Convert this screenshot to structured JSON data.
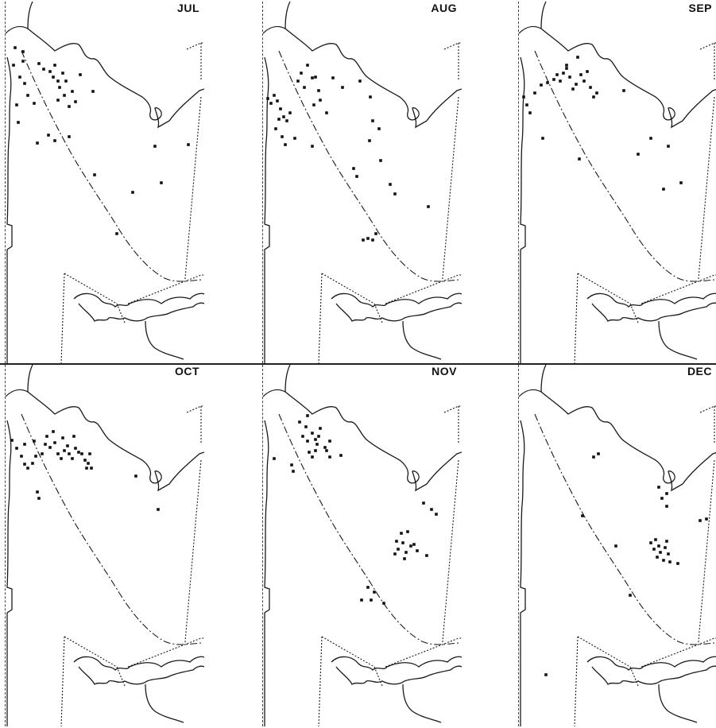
{
  "figure": {
    "panels": [
      {
        "id": "jul",
        "label": "JUL",
        "dots": [
          [
            12,
            58
          ],
          [
            22,
            63
          ],
          [
            10,
            80
          ],
          [
            18,
            95
          ],
          [
            24,
            103
          ],
          [
            14,
            130
          ],
          [
            16,
            152
          ],
          [
            28,
            118
          ],
          [
            36,
            128
          ],
          [
            22,
            75
          ],
          [
            42,
            78
          ],
          [
            48,
            85
          ],
          [
            56,
            88
          ],
          [
            62,
            80
          ],
          [
            60,
            95
          ],
          [
            66,
            100
          ],
          [
            72,
            90
          ],
          [
            76,
            100
          ],
          [
            68,
            108
          ],
          [
            74,
            118
          ],
          [
            84,
            113
          ],
          [
            88,
            126
          ],
          [
            80,
            132
          ],
          [
            94,
            92
          ],
          [
            110,
            113
          ],
          [
            66,
            124
          ],
          [
            54,
            168
          ],
          [
            62,
            175
          ],
          [
            40,
            178
          ],
          [
            80,
            170
          ],
          [
            112,
            218
          ],
          [
            160,
            240
          ],
          [
            188,
            182
          ],
          [
            230,
            180
          ],
          [
            196,
            228
          ],
          [
            140,
            292
          ]
        ]
      },
      {
        "id": "aug",
        "label": "AUG",
        "dots": [
          [
            6,
            122
          ],
          [
            10,
            128
          ],
          [
            14,
            118
          ],
          [
            18,
            125
          ],
          [
            22,
            135
          ],
          [
            26,
            145
          ],
          [
            30,
            150
          ],
          [
            34,
            140
          ],
          [
            16,
            160
          ],
          [
            24,
            170
          ],
          [
            28,
            180
          ],
          [
            40,
            172
          ],
          [
            20,
            148
          ],
          [
            44,
            100
          ],
          [
            52,
            108
          ],
          [
            48,
            90
          ],
          [
            56,
            80
          ],
          [
            62,
            96
          ],
          [
            70,
            112
          ],
          [
            72,
            124
          ],
          [
            64,
            130
          ],
          [
            80,
            140
          ],
          [
            66,
            95
          ],
          [
            88,
            96
          ],
          [
            100,
            108
          ],
          [
            122,
            100
          ],
          [
            135,
            120
          ],
          [
            138,
            150
          ],
          [
            146,
            160
          ],
          [
            134,
            175
          ],
          [
            114,
            210
          ],
          [
            118,
            220
          ],
          [
            148,
            200
          ],
          [
            160,
            230
          ],
          [
            166,
            242
          ],
          [
            208,
            258
          ],
          [
            126,
            300
          ],
          [
            132,
            298
          ],
          [
            138,
            300
          ],
          [
            142,
            292
          ],
          [
            62,
            182
          ]
        ]
      },
      {
        "id": "sep",
        "label": "SEP",
        "dots": [
          [
            6,
            120
          ],
          [
            10,
            130
          ],
          [
            14,
            140
          ],
          [
            20,
            115
          ],
          [
            28,
            105
          ],
          [
            36,
            102
          ],
          [
            44,
            98
          ],
          [
            48,
            92
          ],
          [
            52,
            100
          ],
          [
            56,
            90
          ],
          [
            60,
            84
          ],
          [
            64,
            95
          ],
          [
            68,
            110
          ],
          [
            72,
            104
          ],
          [
            78,
            92
          ],
          [
            82,
            100
          ],
          [
            86,
            88
          ],
          [
            90,
            108
          ],
          [
            98,
            115
          ],
          [
            94,
            120
          ],
          [
            74,
            70
          ],
          [
            60,
            80
          ],
          [
            132,
            112
          ],
          [
            150,
            192
          ],
          [
            166,
            172
          ],
          [
            188,
            182
          ],
          [
            204,
            228
          ],
          [
            182,
            236
          ],
          [
            76,
            198
          ],
          [
            30,
            172
          ]
        ]
      },
      {
        "id": "oct",
        "label": "OCT",
        "dots": [
          [
            8,
            95
          ],
          [
            14,
            105
          ],
          [
            20,
            115
          ],
          [
            24,
            125
          ],
          [
            28,
            130
          ],
          [
            34,
            124
          ],
          [
            38,
            115
          ],
          [
            36,
            96
          ],
          [
            46,
            112
          ],
          [
            50,
            100
          ],
          [
            56,
            104
          ],
          [
            62,
            98
          ],
          [
            66,
            112
          ],
          [
            70,
            118
          ],
          [
            74,
            108
          ],
          [
            78,
            102
          ],
          [
            80,
            112
          ],
          [
            84,
            118
          ],
          [
            88,
            105
          ],
          [
            92,
            110
          ],
          [
            96,
            112
          ],
          [
            100,
            120
          ],
          [
            104,
            124
          ],
          [
            108,
            130
          ],
          [
            102,
            130
          ],
          [
            106,
            112
          ],
          [
            86,
            90
          ],
          [
            72,
            92
          ],
          [
            60,
            84
          ],
          [
            52,
            90
          ],
          [
            40,
            160
          ],
          [
            42,
            168
          ],
          [
            164,
            140
          ],
          [
            192,
            182
          ],
          [
            24,
            100
          ]
        ]
      },
      {
        "id": "nov",
        "label": "NOV",
        "dots": [
          [
            46,
            72
          ],
          [
            54,
            78
          ],
          [
            50,
            90
          ],
          [
            56,
            96
          ],
          [
            62,
            86
          ],
          [
            66,
            94
          ],
          [
            70,
            90
          ],
          [
            72,
            80
          ],
          [
            68,
            100
          ],
          [
            58,
            110
          ],
          [
            62,
            116
          ],
          [
            66,
            108
          ],
          [
            78,
            104
          ],
          [
            80,
            108
          ],
          [
            84,
            116
          ],
          [
            98,
            114
          ],
          [
            14,
            118
          ],
          [
            36,
            126
          ],
          [
            38,
            134
          ],
          [
            202,
            174
          ],
          [
            212,
            182
          ],
          [
            218,
            188
          ],
          [
            174,
            212
          ],
          [
            182,
            210
          ],
          [
            168,
            222
          ],
          [
            176,
            224
          ],
          [
            186,
            228
          ],
          [
            170,
            232
          ],
          [
            180,
            236
          ],
          [
            190,
            226
          ],
          [
            194,
            234
          ],
          [
            166,
            238
          ],
          [
            178,
            244
          ],
          [
            206,
            240
          ],
          [
            132,
            280
          ],
          [
            140,
            286
          ],
          [
            136,
            296
          ],
          [
            152,
            300
          ],
          [
            124,
            296
          ],
          [
            84,
            96
          ],
          [
            56,
            64
          ]
        ]
      },
      {
        "id": "dec",
        "label": "DEC",
        "dots": [
          [
            94,
            116
          ],
          [
            100,
            112
          ],
          [
            176,
            154
          ],
          [
            186,
            162
          ],
          [
            180,
            168
          ],
          [
            186,
            178
          ],
          [
            80,
            190
          ],
          [
            122,
            228
          ],
          [
            166,
            224
          ],
          [
            172,
            220
          ],
          [
            176,
            228
          ],
          [
            170,
            232
          ],
          [
            178,
            236
          ],
          [
            184,
            230
          ],
          [
            188,
            238
          ],
          [
            174,
            242
          ],
          [
            182,
            246
          ],
          [
            190,
            248
          ],
          [
            200,
            250
          ],
          [
            228,
            196
          ],
          [
            236,
            194
          ],
          [
            186,
            222
          ],
          [
            140,
            290
          ],
          [
            34,
            390
          ]
        ]
      }
    ]
  }
}
